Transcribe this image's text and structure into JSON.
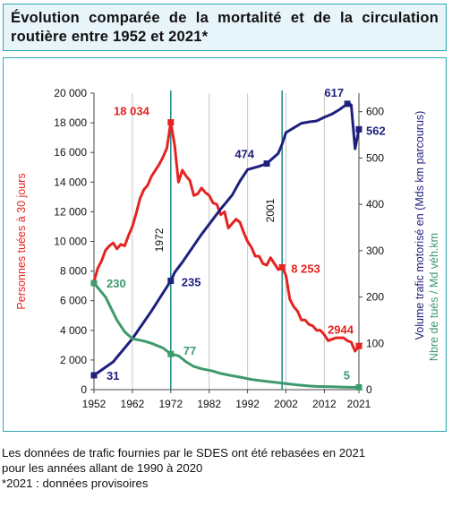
{
  "title": "Évolution comparée de la mortalité et de la circulation routière entre 1952 et 2021*",
  "notes": [
    "Les données de trafic fournies par le SDES ont été rebasées en 2021",
    "pour les années allant de 1990 à 2020",
    "*2021 : données provisoires"
  ],
  "colors": {
    "deaths": "#e52320",
    "traffic": "#1f1f7e",
    "ratio": "#3d9a6c",
    "vline": "#2a8f8a",
    "frame": "#2aa6b4"
  },
  "chart_data": {
    "type": "line",
    "y_left": {
      "label": "Personnes tuées à 30 jours",
      "range": [
        0,
        20000
      ],
      "ticks": [
        "0",
        "2 000",
        "4 000",
        "6 000",
        "8 000",
        "10 000",
        "12 000",
        "14 000",
        "16 000",
        "18 000",
        "20 000"
      ]
    },
    "y_right": {
      "label": "Volume trafic motorisé en (Mds km parcourus)",
      "label2": "Nbre de tués / Md véh.km",
      "range": [
        0,
        640
      ],
      "ticks": [
        "0",
        "100",
        "200",
        "300",
        "400",
        "500",
        "600"
      ]
    },
    "x_axis": {
      "range": [
        1952,
        2021
      ],
      "ticks": [
        "1952",
        "1962",
        "1972",
        "1982",
        "1992",
        "2002",
        "2012",
        "2021"
      ]
    },
    "vertical_lines": [
      {
        "year": 1972,
        "label": "1972"
      },
      {
        "year": 2001,
        "label": "2001"
      }
    ],
    "series": [
      {
        "key": "deaths",
        "axis": "left",
        "x": [
          1952,
          1953,
          1954,
          1955,
          1956,
          1957,
          1958,
          1959,
          1960,
          1961,
          1962,
          1963,
          1964,
          1965,
          1966,
          1967,
          1968,
          1969,
          1970,
          1971,
          1972,
          1973,
          1974,
          1975,
          1976,
          1977,
          1978,
          1979,
          1980,
          1981,
          1982,
          1983,
          1984,
          1985,
          1986,
          1987,
          1988,
          1989,
          1990,
          1991,
          1992,
          1993,
          1994,
          1995,
          1996,
          1997,
          1998,
          1999,
          2000,
          2001,
          2002,
          2003,
          2004,
          2005,
          2006,
          2007,
          2008,
          2009,
          2010,
          2011,
          2012,
          2013,
          2014,
          2015,
          2016,
          2017,
          2018,
          2019,
          2020,
          2021
        ],
        "values": [
          7300,
          8200,
          8700,
          9400,
          9700,
          9900,
          9500,
          9800,
          9700,
          10400,
          11000,
          11900,
          12900,
          13500,
          13800,
          14400,
          14800,
          15200,
          15700,
          16300,
          18034,
          16500,
          14000,
          14800,
          14400,
          14100,
          13100,
          13200,
          13600,
          13300,
          13100,
          12600,
          12500,
          11800,
          12000,
          10900,
          11200,
          11500,
          11300,
          10600,
          10000,
          9600,
          9000,
          9000,
          8500,
          8400,
          8900,
          8500,
          8100,
          8253,
          7700,
          6100,
          5600,
          5300,
          4700,
          4700,
          4400,
          4300,
          4000,
          4000,
          3700,
          3300,
          3400,
          3500,
          3500,
          3500,
          3300,
          3200,
          2600,
          2944
        ]
      },
      {
        "key": "traffic",
        "axis": "right",
        "x": [
          1952,
          1957,
          1962,
          1967,
          1972,
          1973,
          1975,
          1980,
          1985,
          1988,
          1990,
          1992,
          1995,
          1997,
          2000,
          2001,
          2002,
          2004,
          2006,
          2008,
          2010,
          2012,
          2014,
          2016,
          2018,
          2019,
          2020,
          2021
        ],
        "values": [
          31,
          60,
          110,
          170,
          235,
          253,
          275,
          335,
          390,
          420,
          450,
          475,
          482,
          488,
          510,
          530,
          555,
          565,
          575,
          578,
          580,
          588,
          595,
          605,
          617,
          615,
          520,
          562
        ]
      },
      {
        "key": "ratio",
        "axis": "right",
        "x": [
          1952,
          1955,
          1958,
          1960,
          1962,
          1965,
          1967,
          1970,
          1972,
          1974,
          1976,
          1978,
          1980,
          1983,
          1985,
          1988,
          1990,
          1993,
          1995,
          1998,
          2000,
          2002,
          2005,
          2008,
          2010,
          2015,
          2019,
          2021
        ],
        "values": [
          230,
          200,
          150,
          125,
          110,
          105,
          100,
          90,
          77,
          73,
          60,
          50,
          45,
          40,
          35,
          30,
          27,
          22,
          20,
          17,
          15,
          13,
          10,
          8,
          7,
          6,
          5,
          5
        ]
      }
    ],
    "data_labels": [
      {
        "series": "deaths",
        "text": "18 034"
      },
      {
        "series": "deaths",
        "text": "8 253"
      },
      {
        "series": "deaths",
        "text": "2944"
      },
      {
        "series": "traffic",
        "text": "617"
      },
      {
        "series": "traffic",
        "text": "474"
      },
      {
        "series": "traffic",
        "text": "562"
      },
      {
        "series": "traffic",
        "text": "235"
      },
      {
        "series": "traffic",
        "text": "31"
      },
      {
        "series": "ratio",
        "text": "230"
      },
      {
        "series": "ratio",
        "text": "77"
      },
      {
        "series": "ratio",
        "text": "5"
      }
    ]
  }
}
